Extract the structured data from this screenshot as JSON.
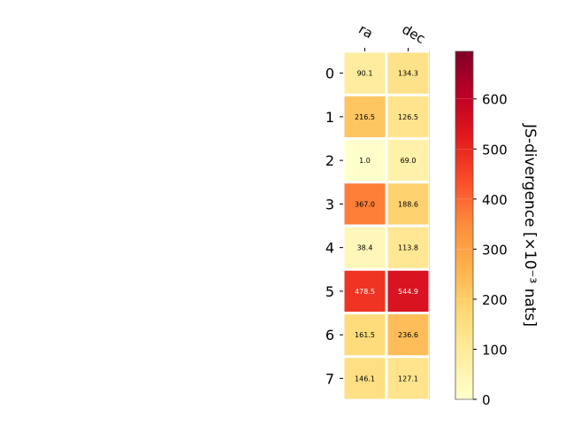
{
  "chart_data": {
    "type": "heatmap",
    "columns": [
      "ra",
      "dec"
    ],
    "rows": [
      "0",
      "1",
      "2",
      "3",
      "4",
      "5",
      "6",
      "7"
    ],
    "values": [
      [
        90.1,
        134.3
      ],
      [
        216.5,
        126.5
      ],
      [
        1.0,
        69.0
      ],
      [
        367.0,
        188.6
      ],
      [
        38.4,
        113.8
      ],
      [
        478.5,
        544.9
      ],
      [
        161.5,
        236.6
      ],
      [
        146.1,
        127.1
      ]
    ],
    "labels": [
      [
        "90.1",
        "134.3"
      ],
      [
        "216.5",
        "126.5"
      ],
      [
        "1.0",
        "69.0"
      ],
      [
        "367.0",
        "188.6"
      ],
      [
        "38.4",
        "113.8"
      ],
      [
        "478.5",
        "544.9"
      ],
      [
        "161.5",
        "236.6"
      ],
      [
        "146.1",
        "127.1"
      ]
    ],
    "colorbar": {
      "label": "JS-divergence [×10⁻³ nats]",
      "range": [
        0,
        695
      ],
      "ticks": [
        0,
        100,
        200,
        300,
        400,
        500,
        600
      ],
      "tick_labels": [
        "0",
        "100",
        "200",
        "300",
        "400",
        "500",
        "600"
      ],
      "colormap": "YlOrRd"
    },
    "colors": {
      "cell_border": "#ffffff",
      "text_dark": "#000000",
      "text_light": "#ffffff"
    }
  }
}
